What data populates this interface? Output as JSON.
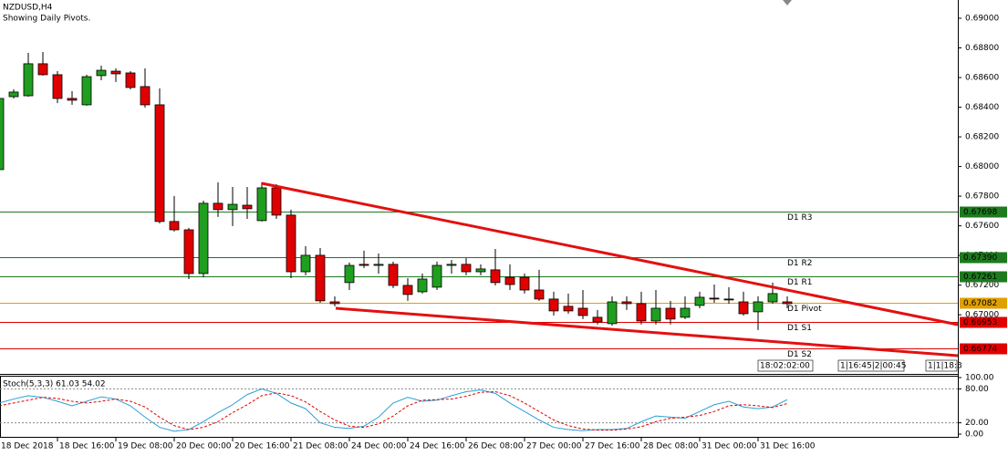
{
  "chart_data": [
    {
      "type": "candlestick",
      "title": "NZDUSD,H4",
      "subtitle": "Showing Daily Pivots.",
      "categories": [
        "18 Dec 2018",
        null,
        null,
        null,
        "18 Dec 16:00",
        null,
        null,
        null,
        "19 Dec 08:00",
        null,
        null,
        null,
        "20 Dec 00:00",
        null,
        null,
        null,
        "20 Dec 16:00",
        null,
        null,
        null,
        "21 Dec 08:00",
        null,
        null,
        null,
        "24 Dec 00:00",
        null,
        null,
        null,
        "24 Dec 16:00",
        null,
        null,
        null,
        "26 Dec 08:00",
        null,
        null,
        null,
        "27 Dec 00:00",
        null,
        null,
        null,
        "27 Dec 16:00",
        null,
        null,
        null,
        "28 Dec 08:00",
        null,
        null,
        null,
        "31 Dec 00:00",
        null,
        null,
        null,
        "31 Dec 16:00",
        null,
        null
      ],
      "open": [
        0.67979,
        0.68471,
        0.68477,
        0.68693,
        0.68619,
        0.68459,
        0.68416,
        0.68613,
        0.68643,
        0.68631,
        0.68539,
        0.68416,
        0.67629,
        0.67573,
        0.67278,
        0.67752,
        0.67709,
        0.67739,
        0.67635,
        0.67856,
        0.67672,
        0.6729,
        0.67401,
        0.67087,
        0.67217,
        0.6734,
        0.67333,
        0.6734,
        0.67198,
        0.67155,
        0.67186,
        0.67333,
        0.6734,
        0.6729,
        0.67303,
        0.67253,
        0.67253,
        0.67167,
        0.67106,
        0.67057,
        0.67044,
        0.66983,
        0.6694,
        0.67087,
        0.67075,
        0.66958,
        0.67044,
        0.66983,
        0.67063,
        0.67112,
        0.67106,
        0.67087,
        0.6702,
        0.67087,
        0.67087
      ],
      "high": [
        0.68508,
        0.6852,
        0.68766,
        0.68772,
        0.68643,
        0.68508,
        0.68619,
        0.6868,
        0.68662,
        0.68643,
        0.68662,
        0.68526,
        0.67801,
        0.67586,
        0.6777,
        0.67893,
        0.67862,
        0.67862,
        0.67893,
        0.67881,
        0.67709,
        0.67463,
        0.6745,
        0.67124,
        0.67352,
        0.67432,
        0.67413,
        0.67358,
        0.67247,
        0.67278,
        0.67358,
        0.6737,
        0.67383,
        0.6734,
        0.67444,
        0.6734,
        0.67278,
        0.67303,
        0.67155,
        0.67143,
        0.67167,
        0.67032,
        0.67124,
        0.67124,
        0.67155,
        0.67167,
        0.67094,
        0.67124,
        0.67155,
        0.67204,
        0.67186,
        0.67155,
        0.67124,
        0.67217,
        0.67124
      ],
      "low": [
        0.67967,
        0.68459,
        0.68471,
        0.68613,
        0.68428,
        0.68416,
        0.6841,
        0.68582,
        0.6857,
        0.6852,
        0.68397,
        0.67616,
        0.67561,
        0.67241,
        0.67253,
        0.6766,
        0.67598,
        0.67647,
        0.67629,
        0.67647,
        0.67247,
        0.67266,
        0.67081,
        0.67057,
        0.67167,
        0.67315,
        0.67278,
        0.6718,
        0.67094,
        0.67143,
        0.67167,
        0.67278,
        0.67266,
        0.67266,
        0.67198,
        0.67167,
        0.67143,
        0.67094,
        0.66995,
        0.67007,
        0.66971,
        0.66934,
        0.66927,
        0.67032,
        0.66934,
        0.66934,
        0.66934,
        0.66971,
        0.67044,
        0.67081,
        0.67075,
        0.66995,
        0.66897,
        0.67075,
        0.67044
      ],
      "close": [
        0.68459,
        0.68502,
        0.68693,
        0.68619,
        0.68459,
        0.68447,
        0.68606,
        0.68649,
        0.68625,
        0.68533,
        0.68416,
        0.67629,
        0.67573,
        0.67278,
        0.67752,
        0.67709,
        0.67745,
        0.67715,
        0.67856,
        0.67672,
        0.6729,
        0.67401,
        0.67094,
        0.67075,
        0.67333,
        0.67333,
        0.6734,
        0.67198,
        0.67137,
        0.67241,
        0.67333,
        0.6734,
        0.6729,
        0.67309,
        0.67217,
        0.67204,
        0.67167,
        0.67106,
        0.67026,
        0.67026,
        0.66995,
        0.66952,
        0.67087,
        0.67075,
        0.66958,
        0.67044,
        0.66971,
        0.67044,
        0.67118,
        0.67106,
        0.671,
        0.67007,
        0.67087,
        0.67143,
        0.67075
      ],
      "up_color": "#1f9e1f",
      "down_color": "#e00000",
      "ylim": [
        0.66601,
        0.69123
      ],
      "yticks": [
        {
          "value": 0.69,
          "label": "0.69000"
        },
        {
          "value": 0.688,
          "label": "0.68800"
        },
        {
          "value": 0.686,
          "label": "0.68600"
        },
        {
          "value": 0.684,
          "label": "0.68400"
        },
        {
          "value": 0.682,
          "label": "0.68200"
        },
        {
          "value": 0.68,
          "label": "0.68000"
        },
        {
          "value": 0.678,
          "label": "0.67800"
        },
        {
          "value": 0.676,
          "label": "0.67600"
        },
        {
          "value": 0.674,
          "label": "0.67400"
        },
        {
          "value": 0.672,
          "label": "0.67200"
        },
        {
          "value": 0.67,
          "label": "0.67000"
        }
      ],
      "pivots": {
        "names": [
          "D1 R3",
          "D1 R2",
          "D1 R1",
          "D1 Pivot",
          "D1 S1",
          "D1 S2"
        ],
        "values": [
          0.67698,
          0.6739,
          0.67261,
          0.67082,
          0.66953,
          0.66774
        ],
        "value_labels": [
          "0.67698",
          "0.67390",
          "0.67261",
          "0.67082",
          "0.66953",
          "0.66774"
        ],
        "colors": [
          "#1e7a1e",
          "#1e7a1e",
          "#1e7a1e",
          "#e0a000",
          "#e00000",
          "#e00000"
        ]
      },
      "time_axis_overlays": [
        "18:02:02:00",
        "1|16:45|2|00:45",
        "1|1|18:3"
      ]
    },
    {
      "type": "line",
      "title": "Stoch(5,3,3) 61.03 54.02",
      "ylim": [
        0,
        100
      ],
      "yticks": [
        {
          "value": 100,
          "label": "100.00"
        },
        {
          "value": 80,
          "label": "80.00"
        },
        {
          "value": 20,
          "label": "20.00"
        },
        {
          "value": 0,
          "label": "0.00"
        }
      ],
      "levels": [
        80,
        20
      ],
      "series": [
        {
          "color": "#2a9fd6",
          "dash": false,
          "values": [
            55,
            62,
            68,
            65,
            58,
            50,
            58,
            66,
            62,
            50,
            30,
            12,
            5,
            8,
            22,
            38,
            52,
            70,
            80,
            72,
            55,
            45,
            20,
            12,
            10,
            14,
            30,
            55,
            65,
            58,
            60,
            68,
            75,
            78,
            72,
            55,
            40,
            25,
            12,
            8,
            6,
            8,
            8,
            10,
            22,
            32,
            30,
            28,
            40,
            52,
            58,
            48,
            45,
            48,
            61.03
          ]
        },
        {
          "color": "#e00000",
          "dash": true,
          "values": [
            50,
            55,
            60,
            65,
            63,
            58,
            55,
            58,
            62,
            58,
            48,
            30,
            15,
            8,
            12,
            22,
            38,
            52,
            68,
            73,
            68,
            57,
            40,
            25,
            14,
            12,
            18,
            32,
            50,
            60,
            61,
            62,
            67,
            74,
            75,
            68,
            55,
            40,
            25,
            15,
            9,
            7,
            7,
            9,
            13,
            22,
            28,
            30,
            33,
            40,
            50,
            52,
            50,
            47,
            54.02
          ]
        }
      ]
    }
  ]
}
